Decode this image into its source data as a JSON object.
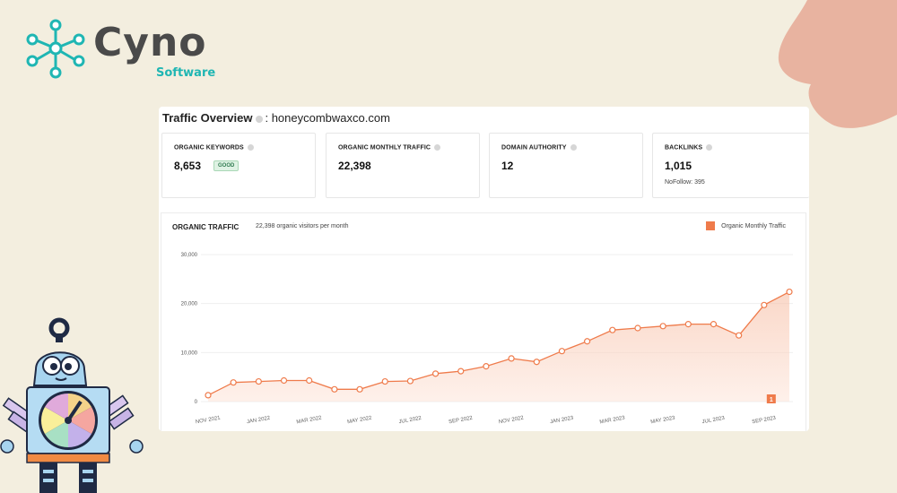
{
  "brand": {
    "name": "Cyno",
    "tagline": "Software",
    "accent_color": "#1fb6b3",
    "text_color": "#4a4a4a"
  },
  "overview": {
    "title": "Traffic Overview",
    "separator": ":",
    "domain": "honeycombwaxco.com"
  },
  "metrics": [
    {
      "label": "ORGANIC KEYWORDS",
      "value": "8,653",
      "badge": "GOOD"
    },
    {
      "label": "ORGANIC MONTHLY TRAFFIC",
      "value": "22,398"
    },
    {
      "label": "DOMAIN AUTHORITY",
      "value": "12"
    },
    {
      "label": "BACKLINKS",
      "value": "1,015",
      "sub": "NoFollow: 395"
    }
  ],
  "traffic": {
    "title": "ORGANIC TRAFFIC",
    "subtitle": "22,398 organic visitors per month",
    "legend": "Organic Monthly Traffic",
    "annotation_marker": "1"
  },
  "chart_data": {
    "type": "area",
    "x": [
      "NOV 2021",
      "DEC 2021",
      "JAN 2022",
      "FEB 2022",
      "MAR 2022",
      "APR 2022",
      "MAY 2022",
      "JUN 2022",
      "JUL 2022",
      "AUG 2022",
      "SEP 2022",
      "OCT 2022",
      "NOV 2022",
      "DEC 2022",
      "JAN 2023",
      "FEB 2023",
      "MAR 2023",
      "APR 2023",
      "MAY 2023",
      "JUN 2023",
      "JUL 2023",
      "AUG 2023",
      "SEP 2023",
      "OCT 2023"
    ],
    "x_tick_labels": [
      "NOV 2021",
      "JAN 2022",
      "MAR 2022",
      "MAY 2022",
      "JUL 2022",
      "SEP 2022",
      "NOV 2022",
      "JAN 2023",
      "MAR 2023",
      "MAY 2023",
      "JUL 2023",
      "SEP 2023"
    ],
    "series": [
      {
        "name": "Organic Monthly Traffic",
        "color": "#ef7b4b",
        "values": [
          1300,
          3900,
          4100,
          4300,
          4300,
          2500,
          2500,
          4100,
          4200,
          5700,
          6200,
          7200,
          8800,
          8100,
          10300,
          12300,
          14600,
          15000,
          15400,
          15800,
          15800,
          13500,
          19700,
          22398
        ]
      }
    ],
    "y_ticks": [
      0,
      10000,
      20000,
      30000
    ],
    "y_tick_labels": [
      "0",
      "10,000",
      "20,000",
      "30,000"
    ],
    "ylim": [
      0,
      30000
    ],
    "grid": true,
    "legend_position": "top-right"
  }
}
